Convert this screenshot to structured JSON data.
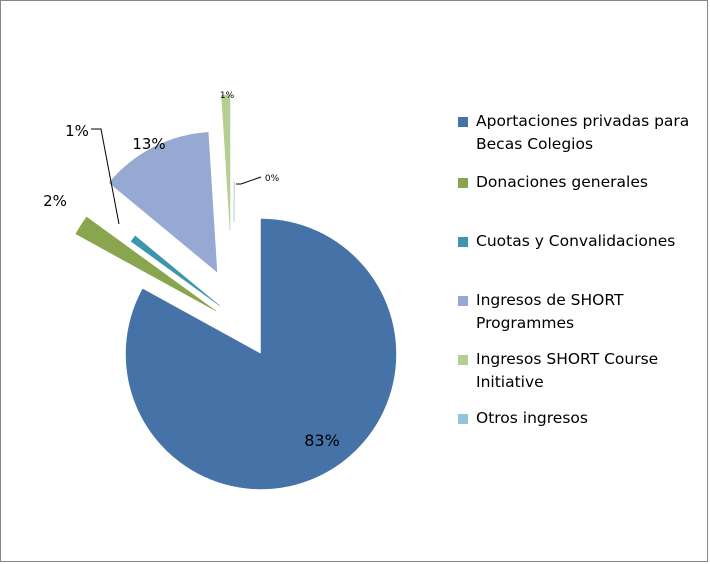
{
  "chart_data": {
    "type": "pie",
    "title": "",
    "exploded": true,
    "legend_position": "right",
    "slices": [
      {
        "name": "Aportaciones privadas para Becas Colegios",
        "value": 83,
        "label": "83%",
        "color": "#4572A7"
      },
      {
        "name": "Donaciones generales",
        "value": 2,
        "label": "2%",
        "color": "#89A54E"
      },
      {
        "name": "Cuotas y Convalidaciones",
        "value": 1,
        "label": "1%",
        "color": "#3D96AE"
      },
      {
        "name": "Ingresos de SHORT Programmes",
        "value": 13,
        "label": "13%",
        "color": "#95A9D2"
      },
      {
        "name": "Ingresos SHORT Course Initiative",
        "value": 1,
        "label": "1%",
        "color": "#B5CF92"
      },
      {
        "name": "Otros ingresos",
        "value": 0,
        "label": "0%",
        "color": "#93C5DA"
      }
    ]
  },
  "legend": {
    "items": [
      {
        "label": "Aportaciones privadas para Becas Colegios",
        "color": "#4572A7"
      },
      {
        "label": "Donaciones generales",
        "color": "#89A54E"
      },
      {
        "label": "Cuotas y Convalidaciones",
        "color": "#3D96AE"
      },
      {
        "label": "Ingresos de SHORT Programmes",
        "color": "#95A9D2"
      },
      {
        "label": "Ingresos SHORT Course Initiative",
        "color": "#B5CF92"
      },
      {
        "label": "Otros ingresos",
        "color": "#93C5DA"
      }
    ]
  }
}
